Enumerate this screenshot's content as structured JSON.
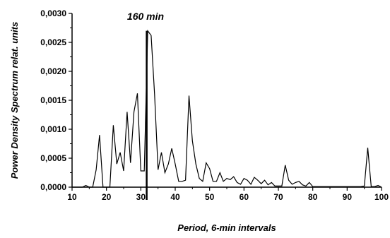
{
  "chart_data": {
    "type": "line",
    "xlabel": "Period, 6-min intervals",
    "ylabel": "Power Density Spectrum relat. units",
    "xlim": [
      10,
      100
    ],
    "ylim": [
      0,
      0.003
    ],
    "xticks": [
      "10",
      "20",
      "30",
      "40",
      "50",
      "60",
      "70",
      "80",
      "90",
      "100"
    ],
    "yticks": [
      "0,0000",
      "0,0005",
      "0,0010",
      "0,0015",
      "0,0020",
      "0,0025",
      "0,0030"
    ],
    "grid": false,
    "annotation": {
      "text": "160 min",
      "x": 31.7
    },
    "series": [
      {
        "x": [
          10,
          11,
          12,
          13,
          14,
          15,
          16,
          17,
          18,
          19,
          20,
          21,
          22,
          23,
          24,
          25,
          26,
          27,
          28,
          29,
          30,
          31,
          32,
          33,
          34,
          35,
          36,
          37,
          38,
          39,
          40,
          41,
          42,
          43,
          44,
          45,
          46,
          47,
          48,
          49,
          50,
          51,
          52,
          53,
          54,
          55,
          56,
          57,
          58,
          59,
          60,
          61,
          62,
          63,
          64,
          65,
          66,
          67,
          68,
          69,
          70,
          71,
          72,
          73,
          74,
          75,
          76,
          77,
          78,
          79,
          80,
          81,
          82,
          83,
          84,
          85,
          86,
          87,
          88,
          89,
          90,
          91,
          92,
          93,
          94,
          95,
          96,
          97,
          98,
          99,
          100
        ],
        "y": [
          0.0,
          0.0,
          0.0,
          0.0,
          3e-05,
          0.0,
          0.0,
          0.0003,
          0.0009,
          0.0,
          0.0,
          0.0,
          0.00107,
          0.0004,
          0.0006,
          0.00028,
          0.0013,
          0.00042,
          0.0013,
          0.00162,
          0.00028,
          0.00028,
          0.0027,
          0.00262,
          0.0016,
          0.0003,
          0.0006,
          0.00025,
          0.0004,
          0.00067,
          0.0004,
          0.0001,
          0.0001,
          0.00012,
          0.00158,
          0.0008,
          0.0004,
          0.00015,
          0.0001,
          0.00042,
          0.00032,
          0.0001,
          0.0001,
          0.00025,
          0.0001,
          0.00015,
          0.00013,
          0.00018,
          8e-05,
          5e-05,
          0.00015,
          0.00012,
          5e-05,
          0.00017,
          0.00012,
          6e-05,
          0.00012,
          4e-05,
          8e-05,
          2e-05,
          2e-05,
          2e-05,
          0.00038,
          0.00012,
          5e-05,
          8e-05,
          0.0001,
          4e-05,
          2e-05,
          8e-05,
          1e-05,
          1e-05,
          1e-05,
          1e-05,
          1e-05,
          1e-05,
          1e-05,
          1e-05,
          1e-05,
          1e-05,
          1e-05,
          1e-05,
          1e-05,
          1e-05,
          1e-05,
          2e-05,
          0.00068,
          1e-05,
          1e-05,
          3e-05,
          0.0
        ]
      }
    ]
  }
}
